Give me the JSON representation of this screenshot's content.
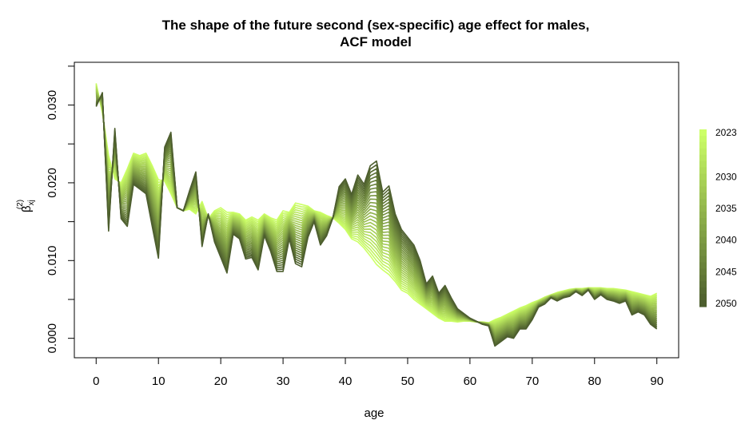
{
  "chart_data": {
    "type": "line",
    "title": "The shape of the future second (sex-specific) age effect for males,",
    "subtitle": "ACF model",
    "xlabel": "age",
    "ylabel_main": "β",
    "ylabel_sub": "xj",
    "ylabel_sup": "(2)",
    "xlim": [
      -3.5,
      93.5
    ],
    "ylim": [
      -0.0025,
      0.0355
    ],
    "x_ticks": [
      0,
      10,
      20,
      30,
      40,
      50,
      60,
      70,
      80,
      90
    ],
    "x_tick_labels": [
      "0",
      "10",
      "20",
      "30",
      "40",
      "50",
      "60",
      "70",
      "80",
      "90"
    ],
    "y_ticks": [
      0.0,
      0.01,
      0.02,
      0.03
    ],
    "y_tick_labels": [
      "0.000",
      "0.010",
      "0.020",
      "0.030"
    ],
    "y_minor_ticks": [
      0.005,
      0.015,
      0.025,
      0.035
    ],
    "years": [
      2023,
      2024,
      2025,
      2026,
      2027,
      2028,
      2029,
      2030,
      2031,
      2032,
      2033,
      2034,
      2035,
      2036,
      2037,
      2038,
      2039,
      2040,
      2041,
      2042,
      2043,
      2044,
      2045,
      2046,
      2047,
      2048,
      2049,
      2050
    ],
    "color_first_year": "#ccff66",
    "color_last_year": "#4d5e2e",
    "legend": {
      "labels": [
        "2023",
        "2030",
        "2035",
        "2040",
        "2045",
        "2050"
      ],
      "values": [
        2023,
        2030,
        2035,
        2040,
        2045,
        2050
      ],
      "position": "right"
    },
    "ages": [
      0,
      1,
      2,
      3,
      4,
      5,
      6,
      7,
      8,
      9,
      10,
      11,
      12,
      13,
      14,
      15,
      16,
      17,
      18,
      19,
      20,
      21,
      22,
      23,
      24,
      25,
      26,
      27,
      28,
      29,
      30,
      31,
      32,
      33,
      34,
      35,
      36,
      37,
      38,
      39,
      40,
      41,
      42,
      43,
      44,
      45,
      46,
      47,
      48,
      49,
      50,
      51,
      52,
      53,
      54,
      55,
      56,
      57,
      58,
      59,
      60,
      61,
      62,
      63,
      64,
      65,
      66,
      67,
      68,
      69,
      70,
      71,
      72,
      73,
      74,
      75,
      76,
      77,
      78,
      79,
      80,
      81,
      82,
      83,
      84,
      85,
      86,
      87,
      88,
      89,
      90
    ],
    "series": [
      {
        "year": 2023,
        "values": [
          0.0328,
          0.029,
          0.0235,
          0.0205,
          0.02,
          0.0218,
          0.0238,
          0.0235,
          0.0238,
          0.0222,
          0.0204,
          0.0202,
          0.0186,
          0.0168,
          0.0164,
          0.0166,
          0.016,
          0.0176,
          0.0154,
          0.0164,
          0.0168,
          0.0162,
          0.0162,
          0.016,
          0.0152,
          0.0156,
          0.0152,
          0.016,
          0.0155,
          0.0152,
          0.0164,
          0.0162,
          0.0174,
          0.0172,
          0.017,
          0.0164,
          0.0162,
          0.0158,
          0.0155,
          0.0148,
          0.014,
          0.0128,
          0.0124,
          0.0116,
          0.0106,
          0.0095,
          0.0088,
          0.0082,
          0.0073,
          0.0062,
          0.0058,
          0.005,
          0.0044,
          0.0038,
          0.0032,
          0.0026,
          0.0022,
          0.0022,
          0.0021,
          0.0022,
          0.0022,
          0.0021,
          0.0021,
          0.002,
          0.0024,
          0.0027,
          0.0031,
          0.0035,
          0.0039,
          0.0042,
          0.0046,
          0.0049,
          0.0053,
          0.0056,
          0.0059,
          0.0061,
          0.0063,
          0.0064,
          0.0064,
          0.0065,
          0.0065,
          0.0065,
          0.0064,
          0.0064,
          0.0063,
          0.0062,
          0.006,
          0.0058,
          0.0056,
          0.0054,
          0.0058
        ]
      },
      {
        "year": 2050,
        "values": [
          0.0298,
          0.0316,
          0.0138,
          0.027,
          0.0154,
          0.0144,
          0.0198,
          0.0192,
          0.0186,
          0.0144,
          0.0103,
          0.0246,
          0.0265,
          0.0168,
          0.0164,
          0.019,
          0.0214,
          0.0118,
          0.016,
          0.0124,
          0.0104,
          0.0084,
          0.0134,
          0.0128,
          0.0102,
          0.0104,
          0.0088,
          0.0132,
          0.0112,
          0.0086,
          0.0086,
          0.0128,
          0.0096,
          0.0092,
          0.013,
          0.015,
          0.012,
          0.0132,
          0.0155,
          0.0195,
          0.0205,
          0.0185,
          0.021,
          0.0198,
          0.0222,
          0.0228,
          0.0188,
          0.0196,
          0.016,
          0.014,
          0.013,
          0.012,
          0.01,
          0.007,
          0.008,
          0.0058,
          0.0068,
          0.0052,
          0.0038,
          0.0032,
          0.0026,
          0.0022,
          0.0018,
          0.0016,
          -0.001,
          -0.0004,
          0.0002,
          0.0,
          0.0012,
          0.0012,
          0.0024,
          0.004,
          0.0044,
          0.0052,
          0.0048,
          0.0052,
          0.0054,
          0.006,
          0.0055,
          0.0062,
          0.005,
          0.0056,
          0.005,
          0.0048,
          0.0045,
          0.0048,
          0.003,
          0.0034,
          0.003,
          0.0018,
          0.0012
        ]
      }
    ]
  }
}
